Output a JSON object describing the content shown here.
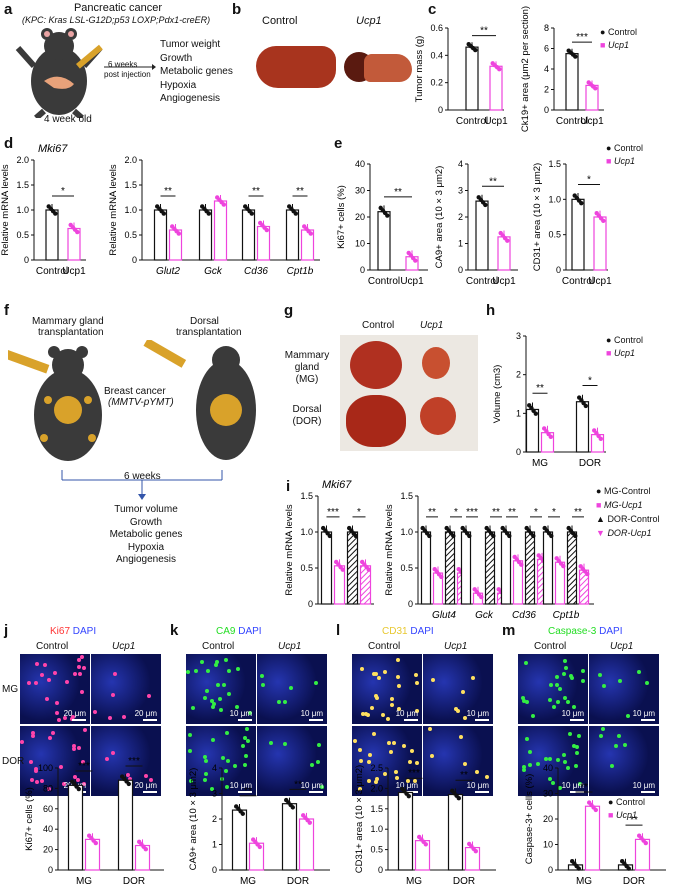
{
  "panels": {
    "a": "a",
    "b": "b",
    "c": "c",
    "d": "d",
    "e": "e",
    "f": "f",
    "g": "g",
    "h": "h",
    "i": "i",
    "j": "j",
    "k": "k",
    "l": "l",
    "m": "m"
  },
  "a": {
    "title_line1": "Pancreatic cancer",
    "title_line2": "(KPC: Kras LSL-G12D;p53 LOXP;Pdx1-creER)",
    "arrow_label_1": "6 weeks",
    "arrow_label_2": "post injection",
    "outcomes": [
      "Tumor weight",
      "Growth",
      "Metabolic genes",
      "Hypoxia",
      "Angiogenesis"
    ],
    "age": "4 week old"
  },
  "b": {
    "control": "Control",
    "ucp1": "Ucp1"
  },
  "f": {
    "mg_label_1": "Mammary gland",
    "mg_label_2": "transplantation",
    "dorsal_label_1": "Dorsal",
    "dorsal_label_2": "transplantation",
    "cancer_1": "Breast cancer",
    "cancer_2": "(MMTV-pYMT)",
    "weeks": "6 weeks",
    "outcomes": [
      "Tumor volume",
      "Growth",
      "Metabolic genes",
      "Hypoxia",
      "Angiogenesis"
    ]
  },
  "g": {
    "control": "Control",
    "ucp1": "Ucp1",
    "row1": [
      "Mammary",
      "gland",
      "(MG)"
    ],
    "row2": [
      "Dorsal",
      "(DOR)"
    ]
  },
  "legend": {
    "control": "Control",
    "ucp1": "Ucp1",
    "mg_control": "MG-Control",
    "mg_ucp1": "MG-Ucp1",
    "dor_control": "DOR-Control",
    "dor_ucp1": "DOR-Ucp1"
  },
  "micro": {
    "j": {
      "stain": "Ki67",
      "dapi": "DAPI",
      "control": "Control",
      "ucp1": "Ucp1",
      "scale": "20 μm"
    },
    "k": {
      "stain": "CA9",
      "dapi": "DAPI",
      "control": "Control",
      "ucp1": "Ucp1",
      "scale": "10 μm"
    },
    "l": {
      "stain": "CD31",
      "dapi": "DAPI",
      "control": "Control",
      "ucp1": "Ucp1",
      "scale": "10 μm"
    },
    "m": {
      "stain": "Caspase-3",
      "dapi": "DAPI",
      "control": "Control",
      "ucp1": "Ucp1",
      "scale": "10 μm"
    },
    "rows": [
      "MG",
      "DOR"
    ]
  },
  "colors": {
    "control": "#111111",
    "ucp1": "#ee44dd",
    "ki67": "#ff3333",
    "ca9": "#22dd22",
    "cd31": "#e8c830",
    "casp": "#22dd22",
    "dapi": "#3344ff"
  },
  "chart_data": [
    {
      "id": "c1",
      "type": "bar",
      "categories": [
        "Control",
        "Ucp1"
      ],
      "values": [
        0.46,
        0.32
      ],
      "ylabel": "Tumor mass (g)",
      "ylim": [
        0,
        0.6
      ],
      "yticks": [
        "0",
        "0.2",
        "0.4",
        "0.6"
      ],
      "sig": [
        "**"
      ]
    },
    {
      "id": "c2",
      "type": "bar",
      "categories": [
        "Control",
        "Ucp1"
      ],
      "values": [
        5.5,
        2.4
      ],
      "ylabel": "Ck19+ area (μm2 per section)",
      "ylim": [
        0,
        8
      ],
      "yticks": [
        "0",
        "2",
        "4",
        "6",
        "8"
      ],
      "sig": [
        "***"
      ]
    },
    {
      "id": "d1",
      "type": "bar",
      "title": "Mki67",
      "categories": [
        "Control",
        "Ucp1"
      ],
      "values": [
        1.0,
        0.63
      ],
      "ylabel": "Relative mRNA levels",
      "ylim": [
        0,
        2.0
      ],
      "yticks": [
        "0",
        "0.5",
        "1.0",
        "1.5",
        "2.0"
      ],
      "sig": [
        "*"
      ]
    },
    {
      "id": "d2",
      "type": "bar",
      "categories": [
        "Glut2",
        "Gck",
        "Cd36",
        "Cpt1b"
      ],
      "series": [
        {
          "name": "Control",
          "values": [
            1.0,
            1.0,
            1.0,
            1.0
          ]
        },
        {
          "name": "Ucp1",
          "values": [
            0.6,
            1.18,
            0.67,
            0.6
          ]
        }
      ],
      "ylabel": "Relative mRNA levels",
      "ylim": [
        0,
        2.0
      ],
      "yticks": [
        "0",
        "0.5",
        "1.0",
        "1.5",
        "2.0"
      ],
      "sig": [
        "**",
        "",
        "**",
        "**"
      ]
    },
    {
      "id": "e1",
      "type": "bar",
      "categories": [
        "Control",
        "Ucp1"
      ],
      "values": [
        22,
        5
      ],
      "ylabel": "Ki67+ cells (%)",
      "ylim": [
        0,
        40
      ],
      "yticks": [
        "0",
        "10",
        "20",
        "30",
        "40"
      ],
      "sig": [
        "**"
      ]
    },
    {
      "id": "e2",
      "type": "bar",
      "categories": [
        "Control",
        "Ucp1"
      ],
      "values": [
        2.6,
        1.25
      ],
      "ylabel": "CA9+ area (10 × 3 μm2)",
      "ylim": [
        0,
        4
      ],
      "yticks": [
        "0",
        "1",
        "2",
        "3",
        "4"
      ],
      "sig": [
        "**"
      ]
    },
    {
      "id": "e3",
      "type": "bar",
      "categories": [
        "Control",
        "Ucp1"
      ],
      "values": [
        1.0,
        0.75
      ],
      "ylabel": "CD31+ area (10 × 3 μm2)",
      "ylim": [
        0,
        1.5
      ],
      "yticks": [
        "0",
        "0.5",
        "1.0",
        "1.5"
      ],
      "sig": [
        "*"
      ]
    },
    {
      "id": "h1",
      "type": "bar",
      "categories": [
        "MG",
        "DOR"
      ],
      "series": [
        {
          "name": "Control",
          "values": [
            1.1,
            1.3
          ]
        },
        {
          "name": "Ucp1",
          "values": [
            0.5,
            0.45
          ]
        }
      ],
      "ylabel": "Volume (cm3)",
      "ylim": [
        0,
        3
      ],
      "yticks": [
        "0",
        "1",
        "2",
        "3"
      ],
      "sig": [
        "**",
        "*"
      ]
    },
    {
      "id": "i1",
      "type": "bar",
      "title": "Mki67",
      "categories": [
        "Mki67"
      ],
      "series": [
        {
          "name": "MG-Control",
          "values": [
            1.0
          ]
        },
        {
          "name": "MG-Ucp1",
          "values": [
            0.53
          ]
        },
        {
          "name": "DOR-Control",
          "values": [
            1.0
          ]
        },
        {
          "name": "DOR-Ucp1",
          "values": [
            0.53
          ]
        }
      ],
      "ylabel": "Relative mRNA levels",
      "ylim": [
        0,
        1.5
      ],
      "yticks": [
        "0",
        "0.5",
        "1.0",
        "1.5"
      ],
      "sig": [
        "***",
        "*"
      ]
    },
    {
      "id": "i2",
      "type": "bar",
      "categories": [
        "Glut4",
        "Gck",
        "Cd36",
        "Cpt1b"
      ],
      "series": [
        {
          "name": "MG-Control",
          "values": [
            1.0,
            1.0,
            1.0,
            1.0
          ]
        },
        {
          "name": "MG-Ucp1",
          "values": [
            0.43,
            0.15,
            0.6,
            0.58
          ]
        },
        {
          "name": "DOR-Control",
          "values": [
            1.0,
            1.0,
            1.0,
            1.0
          ]
        },
        {
          "name": "DOR-Ucp1",
          "values": [
            0.43,
            0.15,
            0.62,
            0.47
          ]
        }
      ],
      "ylabel": "Relative mRNA levels",
      "ylim": [
        0,
        1.5
      ],
      "yticks": [
        "0",
        "0.5",
        "1.0",
        "1.5"
      ],
      "sig": [
        "**",
        "*",
        "***",
        "**",
        "**",
        "*",
        "*",
        "**"
      ]
    },
    {
      "id": "j1",
      "type": "bar",
      "categories": [
        "MG",
        "DOR"
      ],
      "series": [
        {
          "name": "Control",
          "values": [
            83,
            88
          ]
        },
        {
          "name": "Ucp1",
          "values": [
            30,
            24
          ]
        }
      ],
      "ylabel": "Ki67+ cells (%)",
      "ylim": [
        0,
        100
      ],
      "yticks": [
        "0",
        "20",
        "40",
        "60",
        "80",
        "100"
      ],
      "sig": [
        "***",
        "***"
      ]
    },
    {
      "id": "k1",
      "type": "bar",
      "categories": [
        "MG",
        "DOR"
      ],
      "series": [
        {
          "name": "Control",
          "values": [
            2.35,
            2.6
          ]
        },
        {
          "name": "Ucp1",
          "values": [
            1.05,
            2.0
          ]
        }
      ],
      "ylabel": "CA9+ area (10 × 3 μm2)",
      "ylim": [
        0,
        4
      ],
      "yticks": [
        "0",
        "1",
        "2",
        "3",
        "4"
      ],
      "sig": [
        "**",
        "**"
      ]
    },
    {
      "id": "l1",
      "type": "bar",
      "categories": [
        "MG",
        "DOR"
      ],
      "series": [
        {
          "name": "Control",
          "values": [
            1.9,
            1.85
          ]
        },
        {
          "name": "Ucp1",
          "values": [
            0.72,
            0.55
          ]
        }
      ],
      "ylabel": "CD31+ area (10 × 3 μm2)",
      "ylim": [
        0,
        2.5
      ],
      "yticks": [
        "0",
        "0.5",
        "1.0",
        "1.5",
        "2.0",
        "2.5"
      ],
      "sig": [
        "***",
        "**"
      ]
    },
    {
      "id": "m1",
      "type": "bar",
      "categories": [
        "MG",
        "DOR"
      ],
      "series": [
        {
          "name": "Control",
          "values": [
            2,
            2
          ]
        },
        {
          "name": "Ucp1",
          "values": [
            25,
            12
          ]
        }
      ],
      "ylabel": "Caspase-3+ cells (%)",
      "ylim": [
        0,
        40
      ],
      "yticks": [
        "0",
        "10",
        "20",
        "30",
        "40"
      ],
      "sig": [
        "**",
        "**"
      ]
    }
  ]
}
